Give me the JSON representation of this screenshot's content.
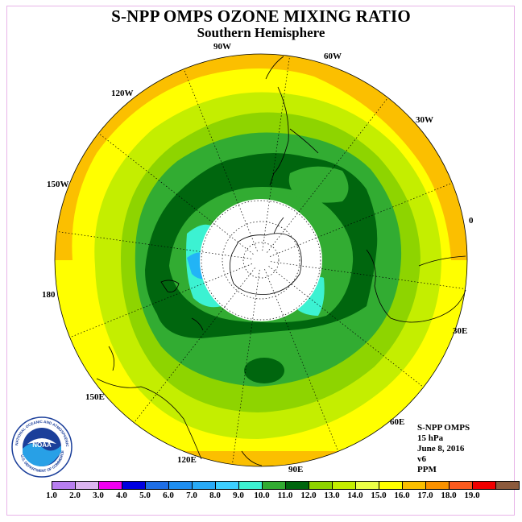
{
  "header": {
    "title": "S-NPP OMPS OZONE MIXING RATIO",
    "subtitle": "Southern Hemisphere"
  },
  "map": {
    "projection": "south polar stereographic",
    "longitude_labels": [
      "90W",
      "60W",
      "30W",
      "0",
      "30E",
      "60E",
      "90E",
      "120E",
      "150E",
      "180",
      "150W",
      "120W"
    ],
    "field_colors": {
      "outer": "#ffff00",
      "band_orange": "#fbbf00",
      "band_yellowgreen": "#c4ee00",
      "band_lightgreen": "#8ed400",
      "band_green": "#32ac32",
      "band_darkgreen": "#00660e",
      "band_cyan": "#3cf2d2",
      "band_blue": "#22b4f6",
      "polar_night": "#ffffff"
    }
  },
  "info": {
    "product": "S-NPP OMPS",
    "level": "15 hPa",
    "date": "June 8, 2016",
    "version": "v6",
    "units": "PPM"
  },
  "colorbar": {
    "colors": [
      "#b87ef0",
      "#dcb4f0",
      "#f000f0",
      "#0000e0",
      "#1e6ee6",
      "#1e8ef0",
      "#28aaf6",
      "#3ccfff",
      "#3cf2d2",
      "#32ac32",
      "#00660e",
      "#8ed400",
      "#c4ee00",
      "#ecff46",
      "#ffff00",
      "#fbbf00",
      "#fb9200",
      "#fb5a1e",
      "#f00000",
      "#8c5a3c"
    ],
    "ticks": [
      "1.0",
      "2.0",
      "3.0",
      "4.0",
      "5.0",
      "6.0",
      "7.0",
      "8.0",
      "9.0",
      "10.0",
      "11.0",
      "12.0",
      "13.0",
      "14.0",
      "15.0",
      "16.0",
      "17.0",
      "18.0",
      "19.0"
    ]
  },
  "logo": {
    "text": "NOAA",
    "ring_text": "NATIONAL OCEANIC AND ATMOSPHERIC ADMINISTRATION",
    "ring_text_bottom": "U.S. DEPARTMENT OF COMMERCE"
  }
}
